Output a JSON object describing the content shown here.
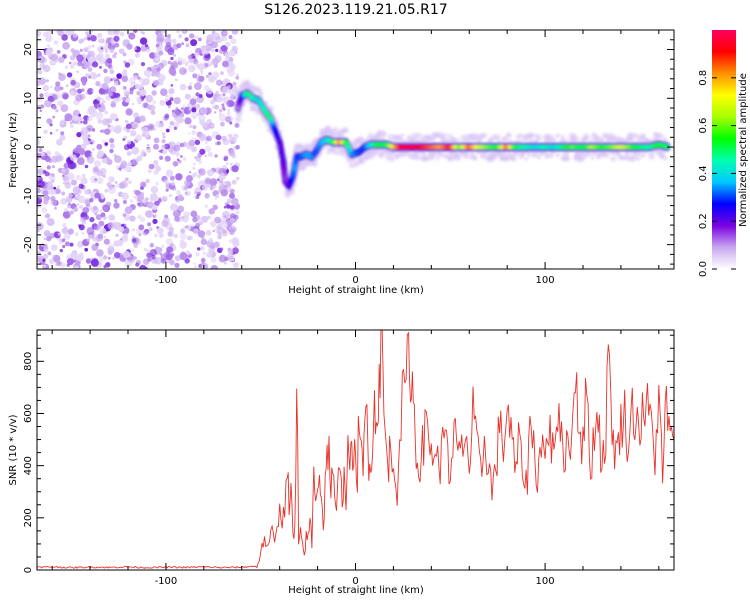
{
  "title": "S126.2023.119.21.05.R17",
  "chart_data": [
    {
      "type": "heatmap",
      "xlabel": "Height of straight line (km)",
      "ylabel": "Frequency (Hz)",
      "xlim": [
        -168,
        168
      ],
      "ylim": [
        -25,
        24
      ],
      "xticks": [
        -100,
        0,
        100
      ],
      "yticks": [
        -20,
        -10,
        0,
        10,
        20
      ],
      "colorbar": {
        "label": "Normalized spectral amplitude",
        "range": [
          0,
          1
        ],
        "ticks": [
          0.0,
          0.2,
          0.4,
          0.6,
          0.8
        ],
        "colors": [
          "#ffffff",
          "#c9a6f0",
          "#7a00e0",
          "#0000ff",
          "#00c8ff",
          "#00ffb0",
          "#00ff00",
          "#a8ff00",
          "#ffff00",
          "#ff9000",
          "#ff0000",
          "#ff0060"
        ]
      },
      "noise_region": {
        "x_range": [
          -168,
          -62
        ],
        "freq_range": [
          -25,
          24
        ],
        "amplitude_range": [
          0.02,
          0.12
        ]
      },
      "ridge": [
        {
          "x": -62,
          "freq": 8,
          "amp": 0.1
        },
        {
          "x": -60,
          "freq": 10.5,
          "amp": 0.25
        },
        {
          "x": -57,
          "freq": 11,
          "amp": 0.5
        },
        {
          "x": -54,
          "freq": 10,
          "amp": 0.45
        },
        {
          "x": -51,
          "freq": 9.5,
          "amp": 0.4
        },
        {
          "x": -48,
          "freq": 7.5,
          "amp": 0.45
        },
        {
          "x": -45,
          "freq": 6,
          "amp": 0.5
        },
        {
          "x": -43,
          "freq": 4,
          "amp": 0.3
        },
        {
          "x": -40,
          "freq": 1,
          "amp": 0.2
        },
        {
          "x": -38,
          "freq": -3,
          "amp": 0.2
        },
        {
          "x": -37,
          "freq": -7,
          "amp": 0.15
        },
        {
          "x": -35,
          "freq": -8,
          "amp": 0.2
        },
        {
          "x": -33,
          "freq": -6,
          "amp": 0.3
        },
        {
          "x": -32,
          "freq": -4,
          "amp": 0.35
        },
        {
          "x": -31,
          "freq": -2,
          "amp": 0.3
        },
        {
          "x": -29,
          "freq": -2,
          "amp": 0.3
        },
        {
          "x": -26,
          "freq": -1.5,
          "amp": 0.35
        },
        {
          "x": -23,
          "freq": -2,
          "amp": 0.35
        },
        {
          "x": -21,
          "freq": -1,
          "amp": 0.3
        },
        {
          "x": -18,
          "freq": 1,
          "amp": 0.35
        },
        {
          "x": -15,
          "freq": 1.5,
          "amp": 0.4
        },
        {
          "x": -12,
          "freq": 1,
          "amp": 0.5
        },
        {
          "x": -8,
          "freq": 1,
          "amp": 0.85
        },
        {
          "x": -5,
          "freq": 1,
          "amp": 0.55
        },
        {
          "x": -2,
          "freq": -1.5,
          "amp": 0.35
        },
        {
          "x": 2,
          "freq": -1,
          "amp": 0.3
        },
        {
          "x": 5,
          "freq": 0,
          "amp": 0.3
        },
        {
          "x": 8,
          "freq": 0.5,
          "amp": 0.4
        },
        {
          "x": 12,
          "freq": 0.5,
          "amp": 0.55
        },
        {
          "x": 16,
          "freq": 0.5,
          "amp": 0.5
        },
        {
          "x": 20,
          "freq": 0,
          "amp": 0.75
        },
        {
          "x": 25,
          "freq": 0,
          "amp": 0.95
        },
        {
          "x": 30,
          "freq": 0,
          "amp": 0.95
        },
        {
          "x": 35,
          "freq": 0,
          "amp": 0.9
        },
        {
          "x": 40,
          "freq": 0,
          "amp": 0.85
        },
        {
          "x": 45,
          "freq": 0,
          "amp": 0.8
        },
        {
          "x": 50,
          "freq": 0,
          "amp": 0.9
        },
        {
          "x": 55,
          "freq": 0,
          "amp": 0.6
        },
        {
          "x": 60,
          "freq": 0,
          "amp": 0.85
        },
        {
          "x": 65,
          "freq": 0,
          "amp": 0.7
        },
        {
          "x": 70,
          "freq": 0,
          "amp": 0.6
        },
        {
          "x": 75,
          "freq": 0,
          "amp": 0.55
        },
        {
          "x": 80,
          "freq": 0,
          "amp": 0.85
        },
        {
          "x": 85,
          "freq": 0,
          "amp": 0.5
        },
        {
          "x": 90,
          "freq": 0,
          "amp": 0.45
        },
        {
          "x": 95,
          "freq": 0,
          "amp": 0.4
        },
        {
          "x": 100,
          "freq": 0,
          "amp": 0.45
        },
        {
          "x": 105,
          "freq": 0,
          "amp": 0.4
        },
        {
          "x": 110,
          "freq": 0,
          "amp": 0.5
        },
        {
          "x": 115,
          "freq": 0,
          "amp": 0.6
        },
        {
          "x": 120,
          "freq": 0,
          "amp": 0.5
        },
        {
          "x": 125,
          "freq": 0,
          "amp": 0.65
        },
        {
          "x": 130,
          "freq": 0,
          "amp": 0.55
        },
        {
          "x": 135,
          "freq": 0,
          "amp": 0.6
        },
        {
          "x": 140,
          "freq": 0,
          "amp": 0.7
        },
        {
          "x": 145,
          "freq": 0,
          "amp": 0.6
        },
        {
          "x": 150,
          "freq": 0,
          "amp": 0.5
        },
        {
          "x": 155,
          "freq": 0,
          "amp": 0.45
        },
        {
          "x": 160,
          "freq": 0.5,
          "amp": 0.55
        },
        {
          "x": 165,
          "freq": 0,
          "amp": 0.5
        }
      ]
    },
    {
      "type": "line",
      "xlabel": "Height of straight line (km)",
      "ylabel": "SNR (10 * v/v)",
      "xlim": [
        -168,
        168
      ],
      "ylim": [
        0,
        920
      ],
      "xticks": [
        -100,
        0,
        100
      ],
      "yticks": [
        0,
        200,
        400,
        600,
        800
      ],
      "color": "#e8322a",
      "series": [
        {
          "x": [
            -168,
            -160,
            -150,
            -140,
            -130,
            -120,
            -110,
            -100,
            -90,
            -80,
            -70,
            -60,
            -52,
            -48,
            -46,
            -44,
            -42,
            -40,
            -38,
            -36,
            -35,
            -34,
            -33,
            -32,
            -31,
            -30,
            -29,
            -28,
            -27,
            -26,
            -25,
            -24,
            -23,
            -22,
            -21,
            -20,
            -19,
            -18,
            -17,
            -16,
            -15,
            -14,
            -13,
            -12,
            -11,
            -10,
            -9,
            -8,
            -7,
            -6,
            -5,
            -4,
            -3,
            -2,
            -1,
            0,
            1,
            2,
            3,
            4,
            5,
            6,
            7,
            8,
            9,
            10,
            11,
            12,
            13,
            14,
            15,
            16,
            17,
            18,
            20,
            22,
            24,
            26,
            28,
            29,
            30,
            31,
            32,
            34,
            36,
            38,
            40,
            42,
            44,
            46,
            48,
            50,
            52,
            54,
            56,
            58,
            60,
            62,
            64,
            66,
            68,
            70,
            72,
            74,
            76,
            78,
            80,
            82,
            84,
            86,
            88,
            90,
            92,
            94,
            96,
            98,
            100,
            102,
            104,
            106,
            108,
            110,
            112,
            114,
            116,
            118,
            120,
            122,
            124,
            126,
            128,
            130,
            132,
            134,
            136,
            138,
            140,
            142,
            144,
            146,
            148,
            150,
            152,
            154,
            156,
            158,
            160,
            162,
            164,
            166,
            168
          ],
          "y": [
            10,
            12,
            9,
            11,
            10,
            12,
            9,
            11,
            10,
            12,
            9,
            11,
            15,
            120,
            70,
            160,
            110,
            250,
            180,
            420,
            200,
            300,
            150,
            80,
            700,
            90,
            140,
            100,
            60,
            130,
            110,
            200,
            120,
            360,
            300,
            330,
            360,
            280,
            170,
            320,
            420,
            500,
            300,
            380,
            250,
            220,
            330,
            460,
            280,
            350,
            300,
            440,
            420,
            420,
            480,
            380,
            400,
            600,
            440,
            350,
            560,
            620,
            420,
            440,
            480,
            620,
            580,
            700,
            780,
            900,
            580,
            500,
            380,
            450,
            400,
            350,
            600,
            700,
            800,
            780,
            700,
            600,
            430,
            420,
            500,
            560,
            440,
            480,
            380,
            460,
            620,
            280,
            520,
            460,
            440,
            550,
            380,
            600,
            470,
            360,
            500,
            420,
            300,
            400,
            550,
            480,
            620,
            520,
            380,
            480,
            420,
            300,
            560,
            480,
            360,
            500,
            420,
            560,
            440,
            620,
            500,
            450,
            500,
            480,
            800,
            560,
            460,
            700,
            400,
            520,
            620,
            380,
            560,
            840,
            480,
            440,
            560,
            600,
            480,
            620,
            580,
            560,
            600,
            620,
            560,
            460,
            640,
            340,
            680,
            480,
            500
          ]
        }
      ]
    }
  ]
}
